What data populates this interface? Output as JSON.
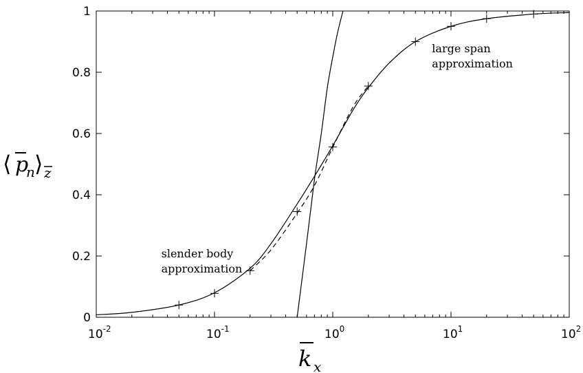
{
  "chart_data": {
    "type": "line",
    "x_scale": "log",
    "xlim": [
      0.01,
      100
    ],
    "ylim": [
      0,
      1
    ],
    "xticks": [
      {
        "base": "10",
        "exp": "-2",
        "value": 0.01
      },
      {
        "base": "10",
        "exp": "-1",
        "value": 0.1
      },
      {
        "base": "10",
        "exp": "0",
        "value": 1
      },
      {
        "base": "10",
        "exp": "1",
        "value": 10
      },
      {
        "base": "10",
        "exp": "2",
        "value": 100
      }
    ],
    "yticks": [
      {
        "label": "0",
        "value": 0
      },
      {
        "label": "0.2",
        "value": 0.2
      },
      {
        "label": "0.4",
        "value": 0.4
      },
      {
        "label": "0.6",
        "value": 0.6
      },
      {
        "label": "0.8",
        "value": 0.8
      },
      {
        "label": "1",
        "value": 1
      }
    ],
    "xlabel": "k̄_x",
    "ylabel": "⟨p̄_n⟩_z̄",
    "grid": false,
    "annotations": [
      {
        "lines": [
          "slender body",
          "approximation"
        ],
        "x": 0.0355,
        "y": 0.195
      },
      {
        "lines": [
          "large span",
          "approximation"
        ],
        "x": 6.9,
        "y": 0.865
      }
    ],
    "series": [
      {
        "style": "solid",
        "x": [
          0.01,
          0.02,
          0.05,
          0.1,
          0.2,
          0.3,
          0.5,
          0.7,
          1.0,
          1.5,
          2.0,
          3.0,
          5.0,
          10,
          20,
          50,
          100
        ],
        "y": [
          0.008,
          0.016,
          0.04,
          0.08,
          0.16,
          0.24,
          0.37,
          0.46,
          0.56,
          0.68,
          0.75,
          0.83,
          0.9,
          0.95,
          0.975,
          0.99,
          0.995
        ]
      },
      {
        "style": "solid",
        "x": [
          0.5,
          0.6,
          0.7,
          0.8,
          0.9,
          1.0,
          1.1,
          1.22
        ],
        "y": [
          0.0,
          0.24,
          0.45,
          0.6,
          0.75,
          0.85,
          0.93,
          1.0
        ]
      },
      {
        "style": "dashed",
        "x": [
          0.2,
          0.3,
          0.5,
          0.7,
          1.0,
          1.5,
          2.0
        ],
        "y": [
          0.152,
          0.22,
          0.34,
          0.43,
          0.555,
          0.69,
          0.755
        ]
      },
      {
        "style": "markers",
        "marker": "+",
        "x": [
          0.05,
          0.1,
          0.2,
          0.5,
          1.0,
          2.0,
          5.0,
          10,
          20,
          50
        ],
        "y": [
          0.04,
          0.078,
          0.152,
          0.345,
          0.556,
          0.755,
          0.9,
          0.95,
          0.975,
          0.99
        ]
      }
    ]
  }
}
